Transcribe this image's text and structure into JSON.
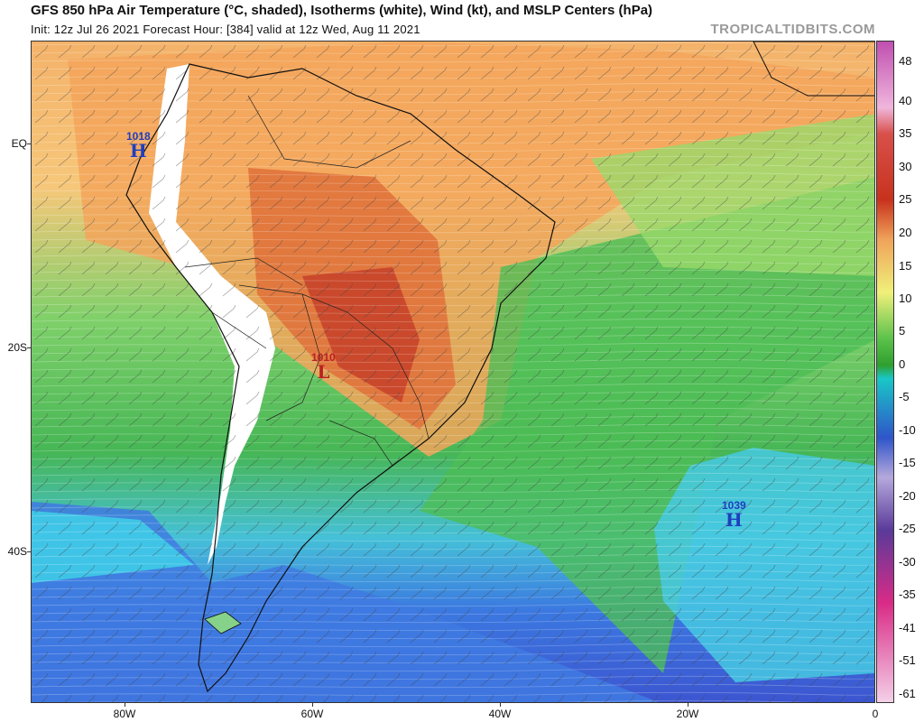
{
  "header": {
    "title": "GFS 850 hPa Air Temperature (°C, shaded), Isotherms (white), Wind (kt), and MSLP Centers (hPa)",
    "subtitle": "Init: 12z Jul 26 2021   Forecast Hour: [384]   valid at 12z Wed, Aug 11 2021",
    "source": "TROPICALTIDBITS.COM"
  },
  "axes": {
    "lat_labels": [
      "EQ",
      "20S",
      "40S"
    ],
    "lon_labels": [
      "80W",
      "60W",
      "40W",
      "20W",
      "0"
    ]
  },
  "colorbar": {
    "labels": [
      "48",
      "40",
      "35",
      "30",
      "25",
      "20",
      "15",
      "10",
      "5",
      "0",
      "-5",
      "-10",
      "-15",
      "-20",
      "-25",
      "-30",
      "-35",
      "-41",
      "-51",
      "-61"
    ],
    "colors": [
      "#c04fb0",
      "#d77cc9",
      "#f0b6dc",
      "#e45c4f",
      "#c8321d",
      "#e07a3f",
      "#f0a35a",
      "#f2c96b",
      "#f0f07a",
      "#b6e270",
      "#5bc24b",
      "#2f9f2e",
      "#19c7c7",
      "#3f8fe8",
      "#2f55c9",
      "#7f79cd",
      "#b5a8dc",
      "#5a3a9a",
      "#d92b86",
      "#f4a6d0"
    ]
  },
  "pressure_centers": [
    {
      "type": "H",
      "value": "1018"
    },
    {
      "type": "L",
      "value": "1010"
    },
    {
      "type": "H",
      "value": "1039"
    }
  ]
}
